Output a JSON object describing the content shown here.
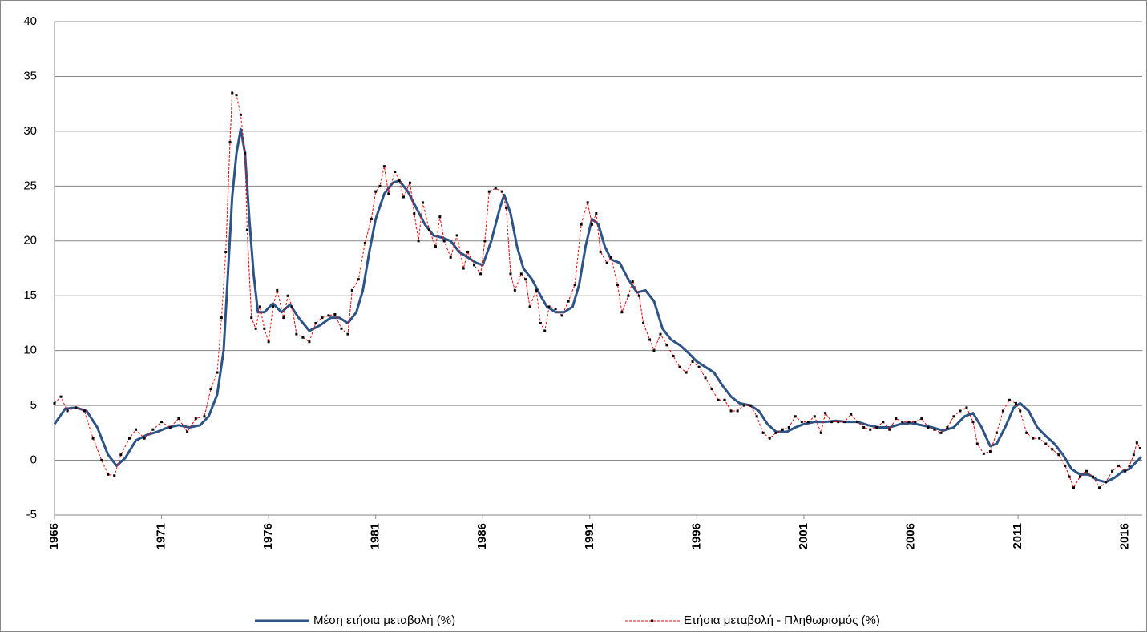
{
  "chart_data": {
    "type": "line",
    "xlim": [
      1966,
      2016.8
    ],
    "xticks": [
      1966,
      1971,
      1976,
      1981,
      1986,
      1991,
      1996,
      2001,
      2006,
      2011,
      2016
    ],
    "ylim": [
      -5,
      40
    ],
    "yticks": [
      -5,
      0,
      5,
      10,
      15,
      20,
      25,
      30,
      35,
      40
    ],
    "grid": true,
    "legend": "bottom",
    "series": [
      {
        "name": "Μέση ετήσια μεταβολή (%)",
        "color": "#2e5386",
        "style": "solid",
        "x": [
          1966.0,
          1966.5,
          1967.0,
          1967.5,
          1968.0,
          1968.5,
          1968.9,
          1969.3,
          1969.8,
          1970.3,
          1970.8,
          1971.3,
          1971.8,
          1972.3,
          1972.8,
          1973.2,
          1973.6,
          1973.9,
          1974.1,
          1974.3,
          1974.5,
          1974.7,
          1974.9,
          1975.1,
          1975.3,
          1975.5,
          1975.8,
          1976.2,
          1976.6,
          1977.0,
          1977.4,
          1977.9,
          1978.4,
          1978.9,
          1979.3,
          1979.7,
          1980.1,
          1980.4,
          1980.7,
          1981.0,
          1981.4,
          1981.8,
          1982.1,
          1982.5,
          1982.9,
          1983.3,
          1983.7,
          1984.1,
          1984.5,
          1984.9,
          1985.3,
          1985.7,
          1986.0,
          1986.4,
          1986.8,
          1987.0,
          1987.3,
          1987.6,
          1987.9,
          1988.3,
          1988.7,
          1989.0,
          1989.4,
          1989.8,
          1990.2,
          1990.5,
          1990.8,
          1991.1,
          1991.4,
          1991.7,
          1992.0,
          1992.4,
          1992.8,
          1993.2,
          1993.6,
          1994.0,
          1994.4,
          1994.8,
          1995.2,
          1995.6,
          1996.0,
          1996.4,
          1996.8,
          1997.2,
          1997.6,
          1998.0,
          1998.5,
          1998.9,
          1999.3,
          1999.7,
          2000.2,
          2000.6,
          2001.0,
          2001.5,
          2002.0,
          2002.5,
          2003.0,
          2003.5,
          2004.0,
          2004.5,
          2005.0,
          2005.5,
          2006.0,
          2006.5,
          2007.0,
          2007.5,
          2008.0,
          2008.5,
          2008.9,
          2009.3,
          2009.7,
          2010.0,
          2010.4,
          2010.8,
          2011.1,
          2011.5,
          2011.9,
          2012.3,
          2012.7,
          2013.1,
          2013.5,
          2013.9,
          2014.3,
          2014.7,
          2015.1,
          2015.5,
          2015.9,
          2016.2,
          2016.5,
          2016.75
        ],
        "values": [
          3.3,
          4.7,
          4.8,
          4.5,
          3.0,
          0.5,
          -0.5,
          0.2,
          1.8,
          2.3,
          2.6,
          3.0,
          3.2,
          3.0,
          3.2,
          4.0,
          6,
          10,
          17,
          24,
          28,
          30.2,
          28,
          22,
          17,
          13.5,
          13.5,
          14.3,
          13.5,
          14.2,
          13.0,
          11.8,
          12.3,
          13.0,
          13.0,
          12.5,
          13.5,
          15.5,
          19,
          22,
          24.3,
          25.3,
          25.5,
          24.5,
          23,
          21.5,
          20.5,
          20.3,
          20,
          19,
          18.5,
          18,
          17.8,
          20,
          23,
          24.2,
          22.5,
          19.5,
          17.5,
          16.5,
          15,
          14,
          13.5,
          13.5,
          14,
          16,
          19.5,
          22,
          21.5,
          19.5,
          18.3,
          18.0,
          16.5,
          15.3,
          15.5,
          14.5,
          12,
          11,
          10.5,
          9.8,
          9,
          8.5,
          8,
          6.8,
          5.8,
          5.2,
          5.0,
          4.5,
          3.3,
          2.6,
          2.6,
          3.0,
          3.3,
          3.5,
          3.5,
          3.6,
          3.5,
          3.5,
          3.2,
          3.0,
          3.0,
          3.3,
          3.4,
          3.2,
          3.0,
          2.7,
          3.0,
          4.0,
          4.3,
          3.0,
          1.3,
          1.5,
          3.0,
          4.8,
          5.2,
          4.5,
          3.0,
          2.2,
          1.5,
          0.5,
          -0.8,
          -1.3,
          -1.3,
          -1.8,
          -2.0,
          -1.6,
          -1.0,
          -0.8,
          -0.2,
          0.3
        ]
      },
      {
        "name": "Ετήσια μεταβολή - Πληθωρισμός (%)",
        "color": "#ff0000",
        "style": "dashed",
        "marker_color": "#000000",
        "x": [
          1966.0,
          1966.3,
          1966.6,
          1967.0,
          1967.4,
          1967.8,
          1968.2,
          1968.5,
          1968.8,
          1969.1,
          1969.5,
          1969.8,
          1970.2,
          1970.6,
          1971.0,
          1971.4,
          1971.8,
          1972.2,
          1972.6,
          1973.0,
          1973.3,
          1973.6,
          1973.8,
          1974.0,
          1974.2,
          1974.3,
          1974.5,
          1974.7,
          1974.9,
          1975.0,
          1975.2,
          1975.4,
          1975.6,
          1975.8,
          1976.0,
          1976.2,
          1976.4,
          1976.7,
          1976.9,
          1977.1,
          1977.3,
          1977.6,
          1977.9,
          1978.2,
          1978.5,
          1978.8,
          1979.1,
          1979.4,
          1979.7,
          1979.9,
          1980.2,
          1980.5,
          1980.8,
          1981.0,
          1981.2,
          1981.4,
          1981.6,
          1981.9,
          1982.1,
          1982.3,
          1982.6,
          1982.8,
          1983.0,
          1983.2,
          1983.5,
          1983.8,
          1984.0,
          1984.2,
          1984.5,
          1984.8,
          1985.1,
          1985.3,
          1985.6,
          1985.9,
          1986.1,
          1986.3,
          1986.6,
          1986.9,
          1987.1,
          1987.3,
          1987.5,
          1987.8,
          1988.0,
          1988.2,
          1988.5,
          1988.7,
          1988.9,
          1989.1,
          1989.4,
          1989.7,
          1990.0,
          1990.3,
          1990.6,
          1990.9,
          1991.1,
          1991.3,
          1991.5,
          1991.8,
          1992.0,
          1992.3,
          1992.5,
          1992.8,
          1993.0,
          1993.3,
          1993.5,
          1993.8,
          1994.0,
          1994.3,
          1994.6,
          1994.9,
          1995.2,
          1995.5,
          1995.8,
          1996.1,
          1996.4,
          1996.7,
          1997.0,
          1997.3,
          1997.6,
          1997.9,
          1998.2,
          1998.5,
          1998.8,
          1999.1,
          1999.4,
          1999.7,
          2000.0,
          2000.3,
          2000.6,
          2000.9,
          2001.2,
          2001.5,
          2001.8,
          2002.0,
          2002.3,
          2002.6,
          2002.9,
          2003.2,
          2003.5,
          2003.8,
          2004.1,
          2004.4,
          2004.7,
          2005.0,
          2005.3,
          2005.6,
          2005.9,
          2006.2,
          2006.5,
          2006.8,
          2007.1,
          2007.4,
          2007.7,
          2008.0,
          2008.3,
          2008.6,
          2008.9,
          2009.1,
          2009.4,
          2009.7,
          2010.0,
          2010.3,
          2010.6,
          2010.9,
          2011.1,
          2011.4,
          2011.7,
          2012.0,
          2012.3,
          2012.6,
          2012.9,
          2013.2,
          2013.4,
          2013.6,
          2013.9,
          2014.2,
          2014.5,
          2014.8,
          2015.1,
          2015.4,
          2015.7,
          2016.0,
          2016.2,
          2016.4,
          2016.55,
          2016.7
        ],
        "values": [
          5.2,
          5.8,
          4.5,
          4.8,
          4.5,
          2.0,
          0.0,
          -1.3,
          -1.4,
          0.5,
          2.0,
          2.8,
          2.0,
          2.8,
          3.5,
          3.0,
          3.8,
          2.6,
          3.8,
          4.0,
          6.5,
          8.0,
          13,
          19,
          29,
          33.5,
          33.3,
          31.5,
          28,
          21,
          13,
          12,
          14,
          12,
          10.8,
          14,
          15.5,
          13,
          15,
          14,
          11.5,
          11.2,
          10.8,
          12.5,
          13,
          13.2,
          13.3,
          12,
          11.5,
          15.5,
          16.5,
          19.8,
          22,
          24.5,
          25,
          26.8,
          24.3,
          26.3,
          25.5,
          24,
          25.3,
          22.5,
          20,
          23.5,
          21,
          19.5,
          22.2,
          20,
          18.5,
          20.5,
          17.5,
          19,
          17.8,
          17,
          20,
          24.5,
          24.8,
          24.5,
          23,
          17,
          15.5,
          17,
          16.5,
          14,
          15.5,
          12.5,
          11.8,
          14,
          13.8,
          13.2,
          14.5,
          16,
          21.5,
          23.5,
          21.5,
          22.5,
          19,
          18,
          18.5,
          16,
          13.5,
          15,
          16.3,
          15,
          12.5,
          11,
          10,
          11.5,
          10.5,
          9.5,
          8.5,
          8,
          9,
          8.5,
          7.5,
          6.5,
          5.5,
          5.5,
          4.5,
          4.5,
          5,
          5,
          4,
          2.5,
          2.0,
          2.5,
          2.8,
          3.0,
          4.0,
          3.5,
          3.5,
          4.0,
          2.5,
          4.3,
          3.5,
          3.5,
          3.5,
          4.2,
          3.5,
          3.0,
          2.8,
          3.0,
          3.5,
          2.8,
          3.8,
          3.5,
          3.5,
          3.5,
          3.8,
          3.0,
          2.8,
          2.5,
          3.0,
          4.0,
          4.5,
          4.8,
          3.5,
          1.5,
          0.6,
          0.8,
          2.5,
          4.5,
          5.5,
          5.2,
          4.5,
          2.5,
          2.0,
          2.0,
          1.5,
          1.0,
          0.5,
          -0.5,
          -1.5,
          -2.5,
          -1.5,
          -1.0,
          -1.5,
          -2.5,
          -2.0,
          -1.0,
          -0.5,
          -1.0,
          -0.5,
          0.5,
          1.6,
          1.1
        ]
      }
    ]
  }
}
